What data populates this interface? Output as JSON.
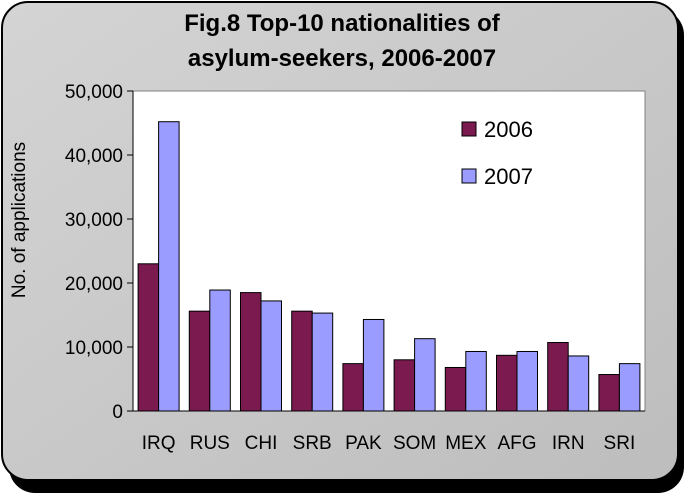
{
  "chart_data": {
    "type": "bar",
    "title_lines": [
      "Fig.8 Top-10 nationalities of",
      "asylum-seekers, 2006-2007"
    ],
    "xlabel": "",
    "ylabel": "No. of applications",
    "categories": [
      "IRQ",
      "RUS",
      "CHI",
      "SRB",
      "PAK",
      "SOM",
      "MEX",
      "AFG",
      "IRN",
      "SRI"
    ],
    "series": [
      {
        "name": "2006",
        "color": "#7a1a4f",
        "values": [
          23000,
          15600,
          18500,
          15600,
          7400,
          8000,
          6800,
          8700,
          10700,
          5700
        ]
      },
      {
        "name": "2007",
        "color": "#9a9cff",
        "values": [
          45200,
          18900,
          17200,
          15300,
          14300,
          11300,
          9300,
          9300,
          8600,
          7400
        ]
      }
    ],
    "ylim": [
      0,
      50000
    ],
    "yticks": [
      "0",
      "10,000",
      "20,000",
      "30,000",
      "40,000",
      "50,000"
    ],
    "grid": false,
    "legend_position": "top-right"
  }
}
